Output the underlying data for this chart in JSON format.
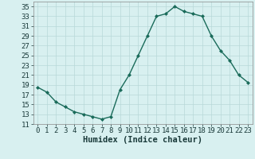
{
  "x": [
    0,
    1,
    2,
    3,
    4,
    5,
    6,
    7,
    8,
    9,
    10,
    11,
    12,
    13,
    14,
    15,
    16,
    17,
    18,
    19,
    20,
    21,
    22,
    23
  ],
  "y": [
    18.5,
    17.5,
    15.5,
    14.5,
    13.5,
    13,
    12.5,
    12,
    12.5,
    18,
    21,
    25,
    29,
    33,
    33.5,
    35,
    34,
    33.5,
    33,
    29,
    26,
    24,
    21,
    19.5
  ],
  "line_color": "#1a6b5a",
  "marker": "D",
  "marker_size": 2.0,
  "bg_color": "#d8f0f0",
  "grid_color": "#b8d8d8",
  "xlabel": "Humidex (Indice chaleur)",
  "xlim": [
    -0.5,
    23.5
  ],
  "ylim": [
    11,
    36
  ],
  "yticks": [
    11,
    13,
    15,
    17,
    19,
    21,
    23,
    25,
    27,
    29,
    31,
    33,
    35
  ],
  "xticks": [
    0,
    1,
    2,
    3,
    4,
    5,
    6,
    7,
    8,
    9,
    10,
    11,
    12,
    13,
    14,
    15,
    16,
    17,
    18,
    19,
    20,
    21,
    22,
    23
  ],
  "xlabel_fontsize": 7.5,
  "tick_fontsize": 6.5,
  "tick_color": "#1a3a3a",
  "line_width": 1.0
}
